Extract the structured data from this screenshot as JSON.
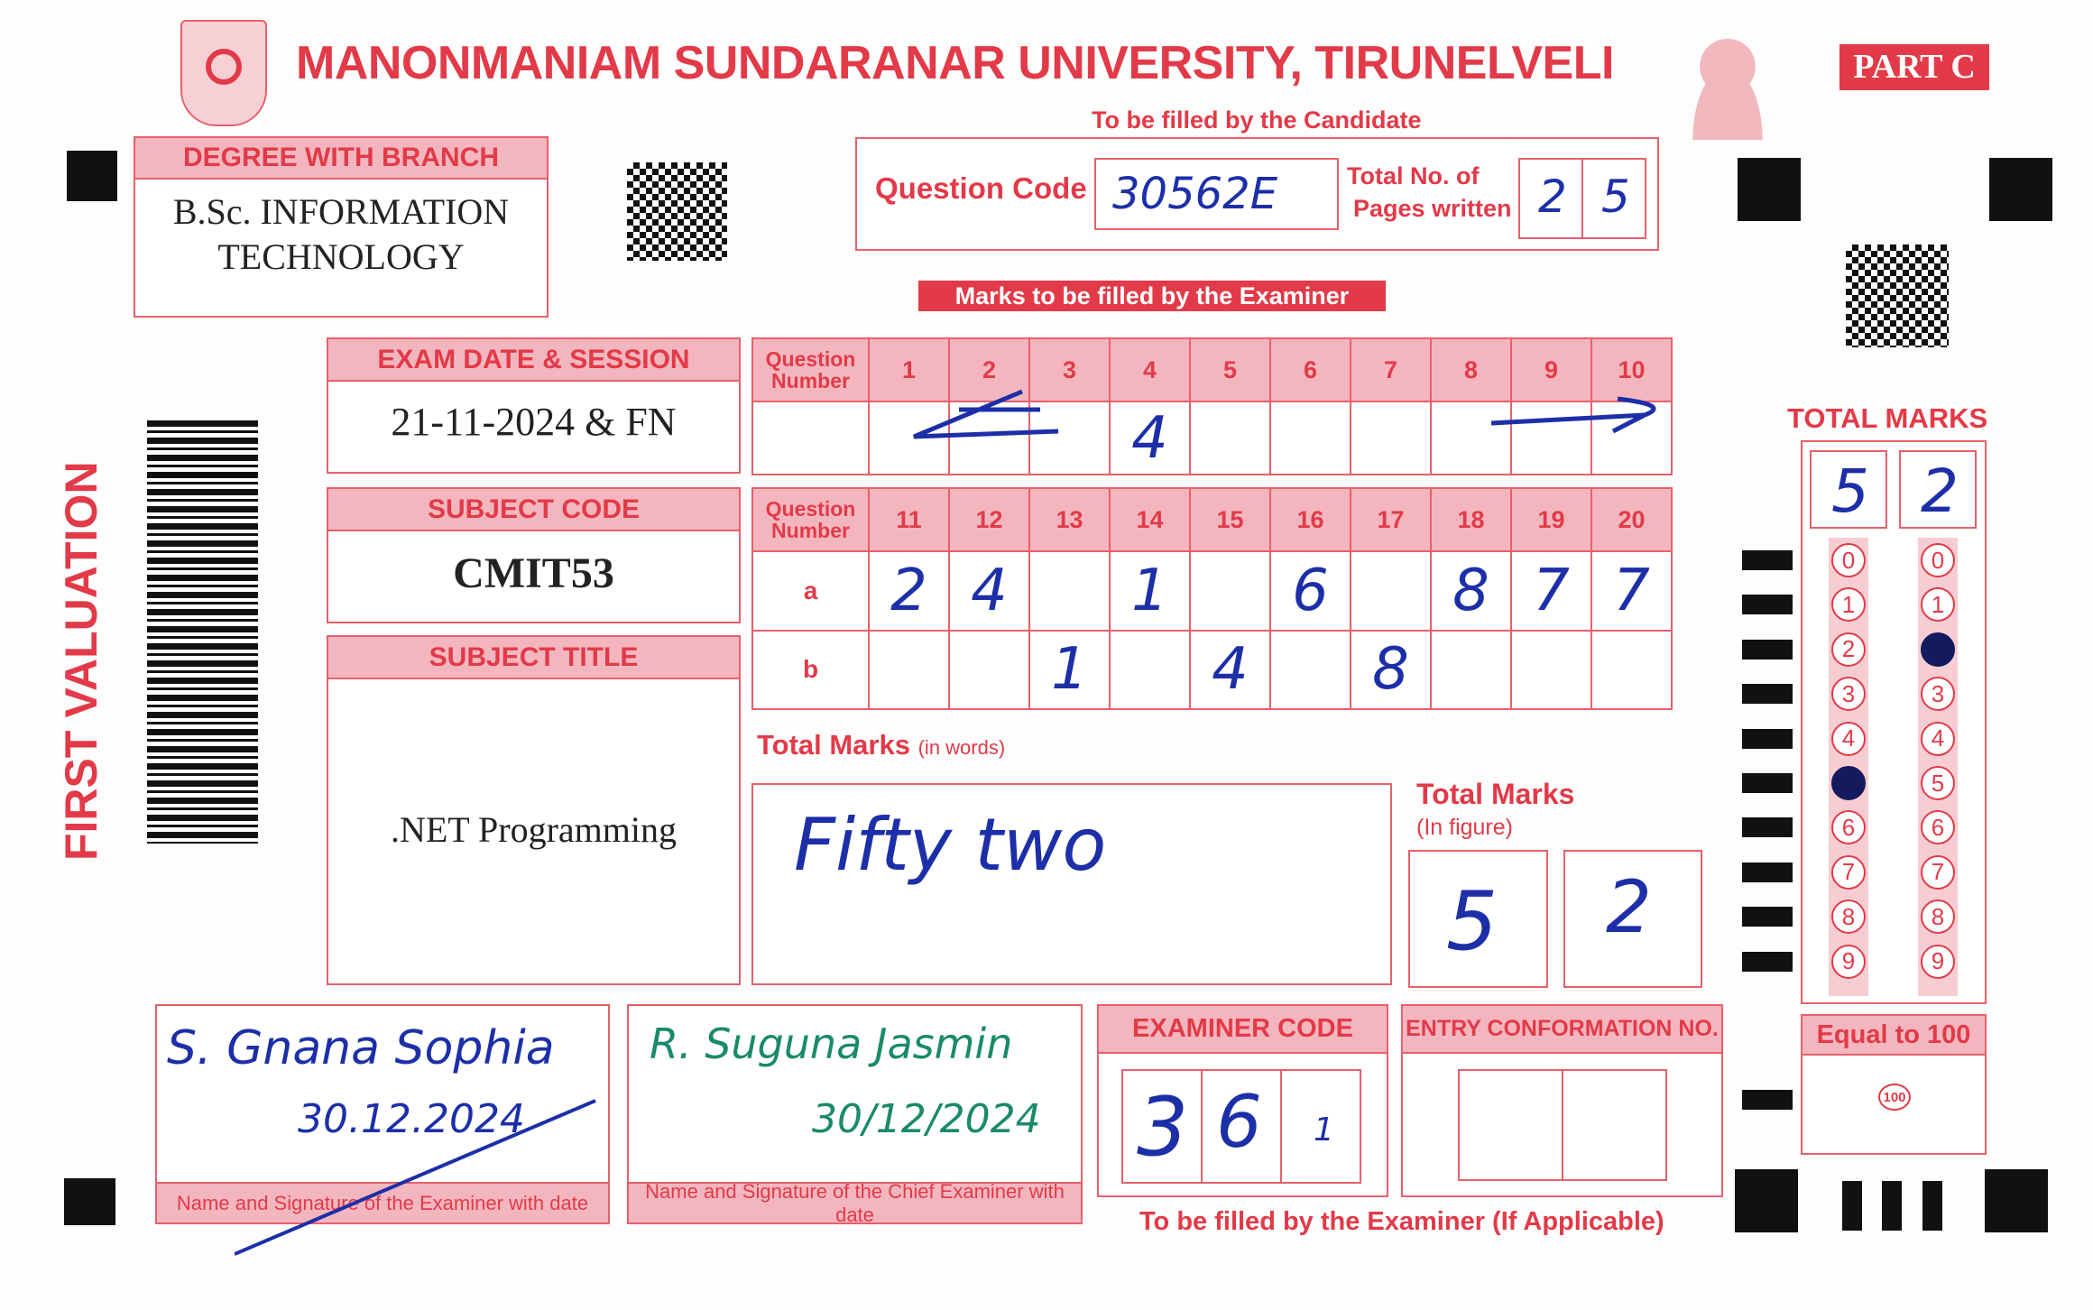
{
  "header": {
    "university": "MANONMANIAM SUNDARANAR UNIVERSITY, TIRUNELVELI",
    "part": "PART C",
    "logo_text": "University seal"
  },
  "side_label": "FIRST VALUATION",
  "degree": {
    "label": "DEGREE WITH BRANCH",
    "value_line1": "B.Sc. INFORMATION",
    "value_line2": "TECHNOLOGY"
  },
  "candidate": {
    "caption": "To be filled by the Candidate",
    "question_code_label": "Question Code",
    "question_code": "30562E",
    "pages_label_1": "Total No. of",
    "pages_label_2": "Pages written",
    "pages_digits": [
      "2",
      "5"
    ]
  },
  "examiner_banner": "Marks to be filled by the Examiner",
  "exam_date": {
    "label": "EXAM DATE & SESSION",
    "value": "21-11-2024 & FN"
  },
  "subject_code": {
    "label": "SUBJECT CODE",
    "value": "CMIT53"
  },
  "subject_title": {
    "label": "SUBJECT TITLE",
    "value": ".NET Programming"
  },
  "marks_table_1": {
    "header_label": "Question Number",
    "questions": [
      "1",
      "2",
      "3",
      "4",
      "5",
      "6",
      "7",
      "8",
      "9",
      "10"
    ],
    "marks": [
      "",
      "",
      "",
      "4",
      "",
      "",
      "",
      "",
      "",
      ""
    ]
  },
  "marks_table_2": {
    "header_label": "Question Number",
    "questions": [
      "11",
      "12",
      "13",
      "14",
      "15",
      "16",
      "17",
      "18",
      "19",
      "20"
    ],
    "row_labels": [
      "a",
      "b"
    ],
    "marks_a": [
      "2",
      "4",
      "",
      "1",
      "",
      "6",
      "",
      "8",
      "7",
      "7"
    ],
    "marks_b": [
      "",
      "",
      "1",
      "",
      "4",
      "",
      "8",
      "",
      "",
      ""
    ]
  },
  "total_words": {
    "label": "Total Marks",
    "sub": "(in words)",
    "value": "Fifty two"
  },
  "total_figure": {
    "label": "Total Marks",
    "sub": "(In figure)",
    "digits": [
      "5",
      "2"
    ]
  },
  "omr": {
    "label": "TOTAL MARKS",
    "digits": [
      "5",
      "2"
    ],
    "options": [
      "0",
      "1",
      "2",
      "3",
      "4",
      "5",
      "6",
      "7",
      "8",
      "9"
    ],
    "selected": [
      5,
      2
    ],
    "equal_label": "Equal to 100",
    "equal_bubble": "100"
  },
  "signatures": {
    "examiner_caption": "Name and Signature of the Examiner with date",
    "examiner_name": "S. Gnana Sophia",
    "examiner_date": "30.12.2024",
    "chief_caption": "Name and Signature of the Chief Examiner with date",
    "chief_name": "R. Suguna Jasmin",
    "chief_date": "30/12/2024"
  },
  "examiner_code": {
    "label": "EXAMINER CODE",
    "digits": [
      "3",
      "6",
      "1"
    ]
  },
  "entry": {
    "label": "ENTRY CONFORMATION NO.",
    "digits": [
      "",
      ""
    ]
  },
  "footer_caption": "To be filled by the Examiner (If Applicable)",
  "colors": {
    "form_red": "#e23a48",
    "form_pink": "#f3b6bf",
    "ink_blue": "#1c2fa8",
    "ink_green": "#1a8a6a"
  }
}
